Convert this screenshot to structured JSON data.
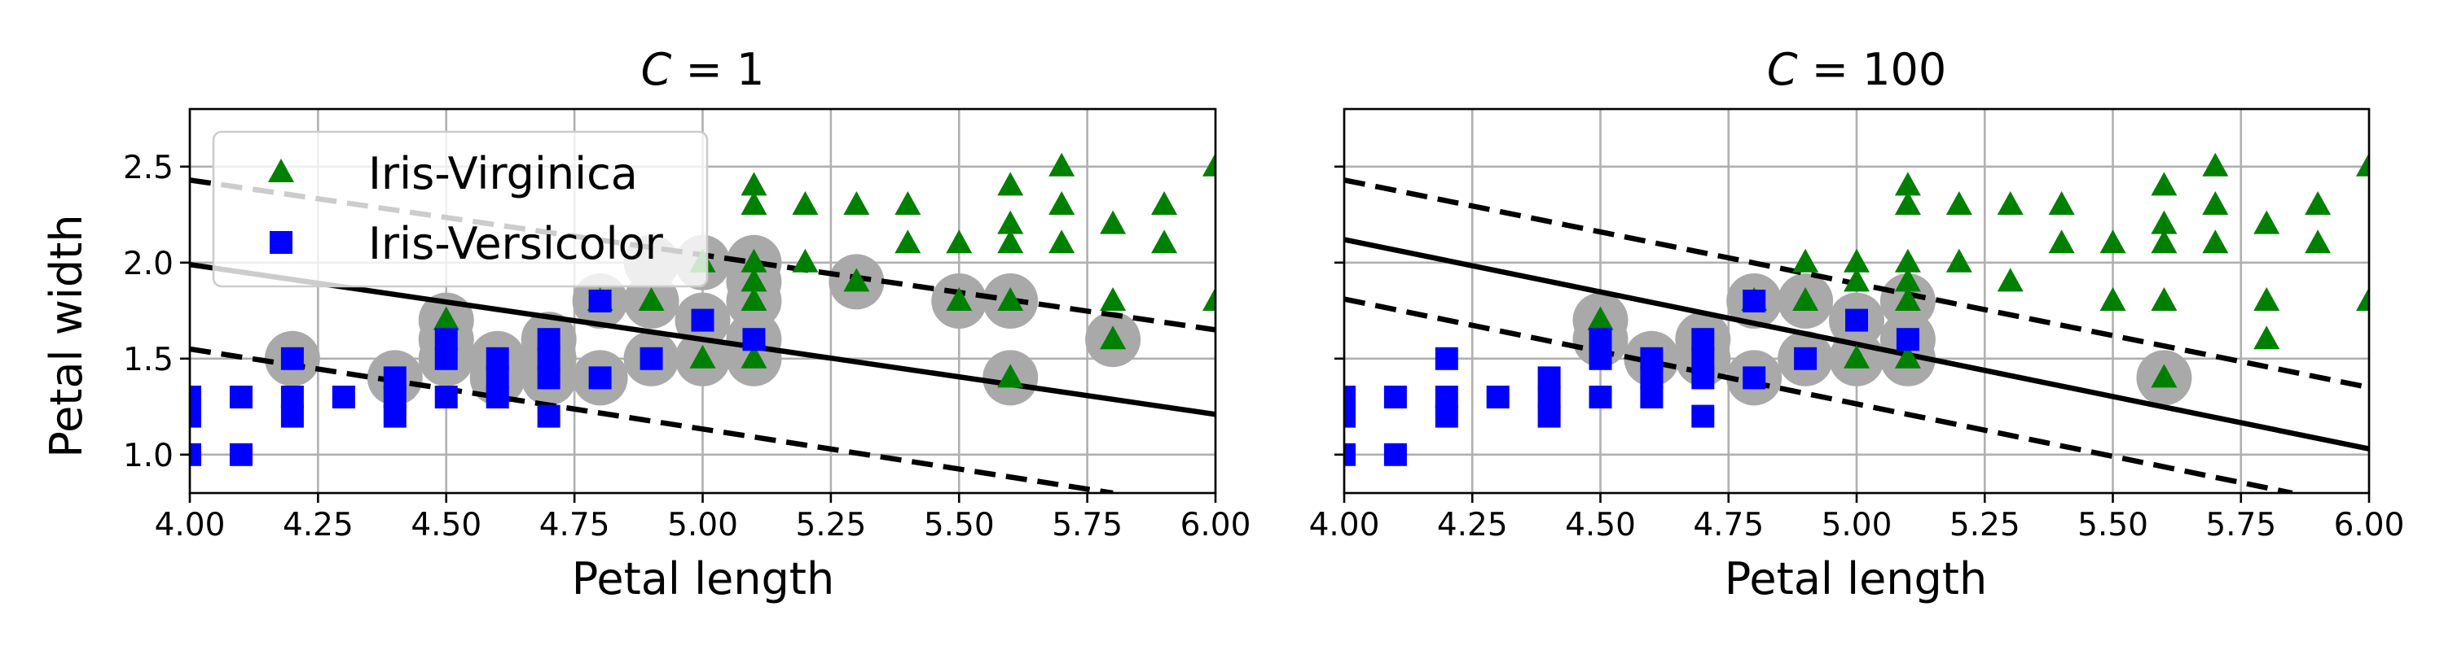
{
  "chart_data": [
    {
      "type": "scatter",
      "title": "C = 1",
      "title_math": {
        "symbol": "C",
        "value": "1"
      },
      "xlabel": "Petal length",
      "ylabel": "Petal width",
      "xlim": [
        4.0,
        6.0
      ],
      "ylim": [
        0.8,
        2.8
      ],
      "xticks": [
        "4.00",
        "4.25",
        "4.50",
        "4.75",
        "5.00",
        "5.25",
        "5.50",
        "5.75",
        "6.00"
      ],
      "yticks": [
        "1.0",
        "1.5",
        "2.0",
        "2.5"
      ],
      "grid": true,
      "legend": {
        "placement": "upper-left",
        "entries": [
          {
            "label": "Iris-Virginica",
            "marker": "triangle",
            "color": "#008000"
          },
          {
            "label": "Iris-Versicolor",
            "marker": "square",
            "color": "#0000ff"
          }
        ]
      },
      "decision_boundary": {
        "x": [
          4.0,
          6.0
        ],
        "y": [
          1.99,
          1.21
        ]
      },
      "margin_upper": {
        "x": [
          4.0,
          6.0
        ],
        "y": [
          2.43,
          1.65
        ]
      },
      "margin_lower": {
        "x": [
          4.0,
          5.8
        ],
        "y": [
          1.55,
          0.8
        ]
      },
      "support_vectors": [
        [
          4.2,
          1.5
        ],
        [
          4.4,
          1.4
        ],
        [
          4.5,
          1.7
        ],
        [
          4.5,
          1.6
        ],
        [
          4.5,
          1.5
        ],
        [
          4.6,
          1.5
        ],
        [
          4.6,
          1.4
        ],
        [
          4.7,
          1.6
        ],
        [
          4.7,
          1.5
        ],
        [
          4.7,
          1.4
        ],
        [
          4.8,
          1.8
        ],
        [
          4.8,
          1.4
        ],
        [
          4.9,
          1.8
        ],
        [
          4.9,
          1.5
        ],
        [
          4.9,
          2.0
        ],
        [
          5.0,
          2.0
        ],
        [
          5.0,
          1.7
        ],
        [
          5.0,
          1.5
        ],
        [
          5.1,
          2.0
        ],
        [
          5.1,
          1.9
        ],
        [
          5.1,
          1.8
        ],
        [
          5.1,
          1.6
        ],
        [
          5.1,
          1.5
        ],
        [
          5.3,
          1.9
        ],
        [
          5.5,
          1.8
        ],
        [
          5.6,
          1.8
        ],
        [
          5.6,
          1.4
        ],
        [
          5.8,
          1.6
        ]
      ],
      "series": [
        {
          "name": "Iris-Virginica",
          "color": "#008000",
          "marker": "triangle",
          "points": [
            [
              4.5,
              1.7
            ],
            [
              4.8,
              1.8
            ],
            [
              4.9,
              1.8
            ],
            [
              5.0,
              2.0
            ],
            [
              5.0,
              1.5
            ],
            [
              5.1,
              2.4
            ],
            [
              5.1,
              2.3
            ],
            [
              5.1,
              2.0
            ],
            [
              5.1,
              1.9
            ],
            [
              5.1,
              1.8
            ],
            [
              5.1,
              1.5
            ],
            [
              5.2,
              2.3
            ],
            [
              5.2,
              2.0
            ],
            [
              5.3,
              2.3
            ],
            [
              5.3,
              1.9
            ],
            [
              5.4,
              2.3
            ],
            [
              5.4,
              2.1
            ],
            [
              5.5,
              2.1
            ],
            [
              5.5,
              1.8
            ],
            [
              5.6,
              2.4
            ],
            [
              5.6,
              2.2
            ],
            [
              5.6,
              2.1
            ],
            [
              5.6,
              1.8
            ],
            [
              5.6,
              1.4
            ],
            [
              5.7,
              2.5
            ],
            [
              5.7,
              2.3
            ],
            [
              5.7,
              2.1
            ],
            [
              5.8,
              2.2
            ],
            [
              5.8,
              1.8
            ],
            [
              5.8,
              1.6
            ],
            [
              5.9,
              2.3
            ],
            [
              5.9,
              2.1
            ],
            [
              6.0,
              2.5
            ],
            [
              6.0,
              1.8
            ]
          ]
        },
        {
          "name": "Iris-Versicolor",
          "color": "#0000ff",
          "marker": "square",
          "points": [
            [
              4.0,
              1.3
            ],
            [
              4.0,
              1.2
            ],
            [
              4.0,
              1.0
            ],
            [
              4.1,
              1.3
            ],
            [
              4.1,
              1.0
            ],
            [
              4.2,
              1.5
            ],
            [
              4.2,
              1.3
            ],
            [
              4.2,
              1.2
            ],
            [
              4.3,
              1.3
            ],
            [
              4.4,
              1.4
            ],
            [
              4.4,
              1.3
            ],
            [
              4.4,
              1.2
            ],
            [
              4.5,
              1.6
            ],
            [
              4.5,
              1.5
            ],
            [
              4.5,
              1.3
            ],
            [
              4.6,
              1.5
            ],
            [
              4.6,
              1.4
            ],
            [
              4.6,
              1.3
            ],
            [
              4.7,
              1.6
            ],
            [
              4.7,
              1.5
            ],
            [
              4.7,
              1.4
            ],
            [
              4.7,
              1.2
            ],
            [
              4.8,
              1.8
            ],
            [
              4.8,
              1.4
            ],
            [
              4.9,
              1.5
            ],
            [
              5.0,
              1.7
            ],
            [
              5.1,
              1.6
            ]
          ]
        }
      ]
    },
    {
      "type": "scatter",
      "title": "C = 100",
      "title_math": {
        "symbol": "C",
        "value": "100"
      },
      "xlabel": "Petal length",
      "ylabel": "",
      "xlim": [
        4.0,
        6.0
      ],
      "ylim": [
        0.8,
        2.8
      ],
      "xticks": [
        "4.00",
        "4.25",
        "4.50",
        "4.75",
        "5.00",
        "5.25",
        "5.50",
        "5.75",
        "6.00"
      ],
      "yticks": [],
      "grid": true,
      "decision_boundary": {
        "x": [
          4.0,
          6.0
        ],
        "y": [
          2.12,
          1.03
        ]
      },
      "margin_upper": {
        "x": [
          4.0,
          6.0
        ],
        "y": [
          2.43,
          1.35
        ]
      },
      "margin_lower": {
        "x": [
          4.0,
          5.85
        ],
        "y": [
          1.81,
          0.8
        ]
      },
      "support_vectors": [
        [
          4.5,
          1.7
        ],
        [
          4.5,
          1.6
        ],
        [
          4.6,
          1.5
        ],
        [
          4.7,
          1.6
        ],
        [
          4.7,
          1.5
        ],
        [
          4.8,
          1.8
        ],
        [
          4.8,
          1.4
        ],
        [
          4.9,
          1.8
        ],
        [
          4.9,
          1.5
        ],
        [
          5.0,
          1.7
        ],
        [
          5.0,
          1.5
        ],
        [
          5.1,
          1.8
        ],
        [
          5.1,
          1.6
        ],
        [
          5.1,
          1.5
        ],
        [
          5.6,
          1.4
        ]
      ],
      "series": [
        {
          "name": "Iris-Virginica",
          "color": "#008000",
          "marker": "triangle",
          "points": [
            [
              4.5,
              1.7
            ],
            [
              4.8,
              1.8
            ],
            [
              4.9,
              2.0
            ],
            [
              4.9,
              1.8
            ],
            [
              5.0,
              2.0
            ],
            [
              5.0,
              1.9
            ],
            [
              5.0,
              1.5
            ],
            [
              5.1,
              2.4
            ],
            [
              5.1,
              2.3
            ],
            [
              5.1,
              2.0
            ],
            [
              5.1,
              1.9
            ],
            [
              5.1,
              1.8
            ],
            [
              5.1,
              1.5
            ],
            [
              5.2,
              2.3
            ],
            [
              5.2,
              2.0
            ],
            [
              5.3,
              2.3
            ],
            [
              5.3,
              1.9
            ],
            [
              5.4,
              2.3
            ],
            [
              5.4,
              2.1
            ],
            [
              5.5,
              2.1
            ],
            [
              5.5,
              1.8
            ],
            [
              5.6,
              2.4
            ],
            [
              5.6,
              2.2
            ],
            [
              5.6,
              2.1
            ],
            [
              5.6,
              1.8
            ],
            [
              5.6,
              1.4
            ],
            [
              5.7,
              2.5
            ],
            [
              5.7,
              2.3
            ],
            [
              5.7,
              2.1
            ],
            [
              5.8,
              2.2
            ],
            [
              5.8,
              1.8
            ],
            [
              5.8,
              1.6
            ],
            [
              5.9,
              2.3
            ],
            [
              5.9,
              2.1
            ],
            [
              6.0,
              2.5
            ],
            [
              6.0,
              1.8
            ]
          ]
        },
        {
          "name": "Iris-Versicolor",
          "color": "#0000ff",
          "marker": "square",
          "points": [
            [
              4.0,
              1.3
            ],
            [
              4.0,
              1.2
            ],
            [
              4.0,
              1.0
            ],
            [
              4.1,
              1.3
            ],
            [
              4.1,
              1.0
            ],
            [
              4.2,
              1.5
            ],
            [
              4.2,
              1.3
            ],
            [
              4.2,
              1.2
            ],
            [
              4.3,
              1.3
            ],
            [
              4.4,
              1.4
            ],
            [
              4.4,
              1.3
            ],
            [
              4.4,
              1.2
            ],
            [
              4.5,
              1.6
            ],
            [
              4.5,
              1.5
            ],
            [
              4.5,
              1.3
            ],
            [
              4.6,
              1.5
            ],
            [
              4.6,
              1.4
            ],
            [
              4.6,
              1.3
            ],
            [
              4.7,
              1.6
            ],
            [
              4.7,
              1.5
            ],
            [
              4.7,
              1.4
            ],
            [
              4.7,
              1.2
            ],
            [
              4.8,
              1.8
            ],
            [
              4.8,
              1.4
            ],
            [
              4.9,
              1.5
            ],
            [
              5.0,
              1.7
            ],
            [
              5.1,
              1.6
            ]
          ]
        }
      ]
    }
  ],
  "colors": {
    "support_vector": "#a9a9a9",
    "virginica": "#008000",
    "versicolor": "#0000ff",
    "boundary": "#000000",
    "grid": "#b0b0b0"
  }
}
